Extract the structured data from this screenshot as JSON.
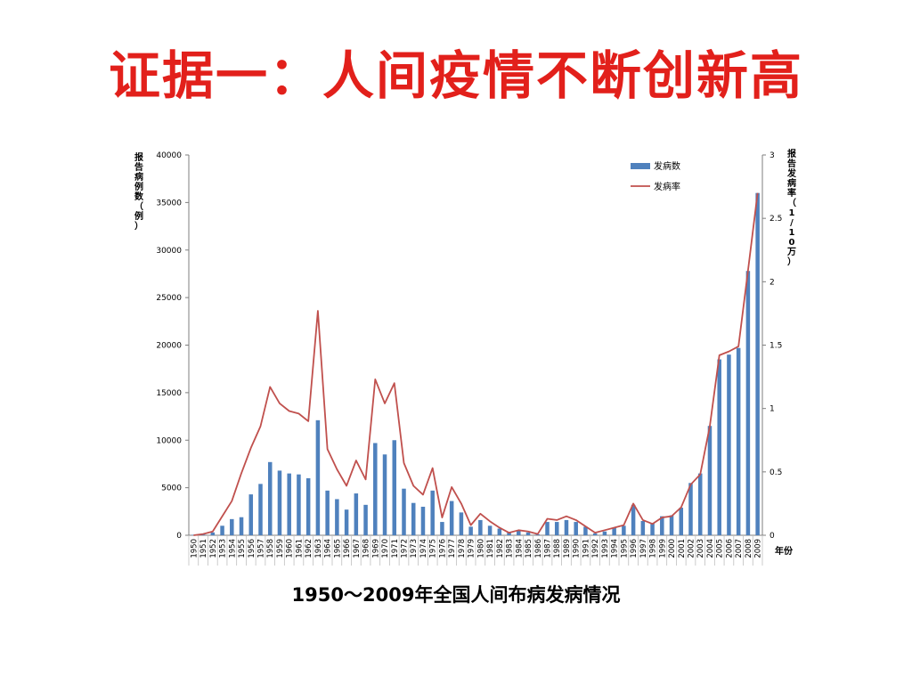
{
  "slide": {
    "title": "证据一：人间疫情不断创新高",
    "caption": "1950～2009年全国人间布病发病情况"
  },
  "colors": {
    "title": "#e2201b",
    "bar": "#4f81bd",
    "line": "#c0504d",
    "axis": "#7f7f7f"
  },
  "chart_data": {
    "type": "bar",
    "x": [
      1950,
      1951,
      1952,
      1953,
      1954,
      1955,
      1956,
      1957,
      1958,
      1959,
      1960,
      1961,
      1962,
      1963,
      1964,
      1965,
      1966,
      1967,
      1968,
      1969,
      1970,
      1971,
      1972,
      1973,
      1974,
      1975,
      1976,
      1977,
      1978,
      1979,
      1980,
      1981,
      1982,
      1983,
      1984,
      1985,
      1986,
      1987,
      1988,
      1989,
      1990,
      1991,
      1992,
      1993,
      1994,
      1995,
      1996,
      1997,
      1998,
      1999,
      2000,
      2001,
      2002,
      2003,
      2004,
      2005,
      2006,
      2007,
      2008,
      2009
    ],
    "xlabel": "年份",
    "ylabel": "报告病例数（例）",
    "y2label": "报告发病率（1/10万）",
    "ylim": [
      0,
      40000
    ],
    "y2lim": [
      0,
      3
    ],
    "yticks": [
      0,
      5000,
      10000,
      15000,
      20000,
      25000,
      30000,
      35000,
      40000
    ],
    "y2ticks": [
      0,
      0.5,
      1,
      1.5,
      2,
      2.5,
      3
    ],
    "legend_position": "top-right",
    "grid": false,
    "series": [
      {
        "name": "发病数",
        "type": "bar",
        "axis": "left",
        "values": [
          50,
          80,
          300,
          1000,
          1700,
          1900,
          4300,
          5400,
          7700,
          6800,
          6500,
          6400,
          6000,
          12100,
          4700,
          3800,
          2700,
          4400,
          3200,
          9700,
          8500,
          10000,
          4900,
          3400,
          3000,
          4700,
          1400,
          3600,
          2400,
          900,
          1600,
          1000,
          700,
          300,
          500,
          300,
          100,
          1400,
          1400,
          1600,
          1400,
          900,
          200,
          400,
          800,
          1000,
          3200,
          1500,
          1300,
          2000,
          2100,
          2900,
          5500,
          6500,
          11500,
          18500,
          19000,
          19700,
          27800,
          36000
        ]
      },
      {
        "name": "发病率",
        "type": "line",
        "axis": "right",
        "values": [
          0.0,
          0.01,
          0.03,
          0.15,
          0.27,
          0.49,
          0.69,
          0.86,
          1.17,
          1.04,
          0.98,
          0.96,
          0.9,
          1.77,
          0.68,
          0.52,
          0.39,
          0.59,
          0.44,
          1.23,
          1.04,
          1.2,
          0.57,
          0.39,
          0.32,
          0.53,
          0.14,
          0.38,
          0.25,
          0.08,
          0.17,
          0.11,
          0.06,
          0.02,
          0.04,
          0.03,
          0.01,
          0.13,
          0.12,
          0.15,
          0.12,
          0.07,
          0.02,
          0.04,
          0.06,
          0.08,
          0.25,
          0.12,
          0.09,
          0.14,
          0.15,
          0.22,
          0.4,
          0.48,
          0.86,
          1.42,
          1.45,
          1.49,
          2.09,
          2.7
        ]
      }
    ]
  }
}
